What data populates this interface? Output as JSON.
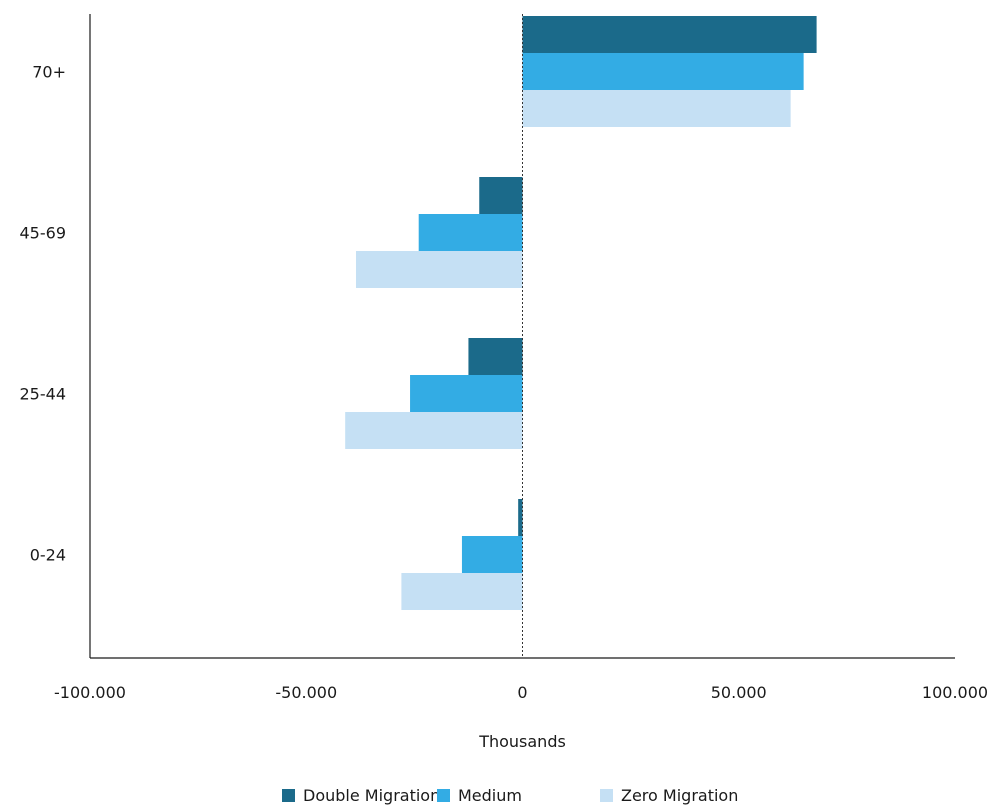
{
  "chart_data": {
    "type": "bar",
    "orientation": "horizontal",
    "title": "",
    "xlabel": "Thousands",
    "ylabel": "",
    "categories": [
      "70+",
      "45-69",
      "25-44",
      "0-24"
    ],
    "series": [
      {
        "name": "Double Migration",
        "color": "#1b6a8a",
        "values": [
          68000,
          -10000,
          -12500,
          -1000
        ]
      },
      {
        "name": "Medium",
        "color": "#33ace4",
        "values": [
          65000,
          -24000,
          -26000,
          -14000
        ]
      },
      {
        "name": "Zero Migration",
        "color": "#c5e0f4",
        "values": [
          62000,
          -38500,
          -41000,
          -28000
        ]
      }
    ],
    "xlim": [
      -100000,
      100000
    ],
    "xticks": [
      -100000,
      -50000,
      0,
      50000,
      100000
    ],
    "xtick_labels": [
      "-100.000",
      "-50.000",
      "0",
      "50.000",
      "100.000"
    ],
    "zero_line": "dotted",
    "grid": false,
    "legend": {
      "position": "bottom-center"
    }
  }
}
